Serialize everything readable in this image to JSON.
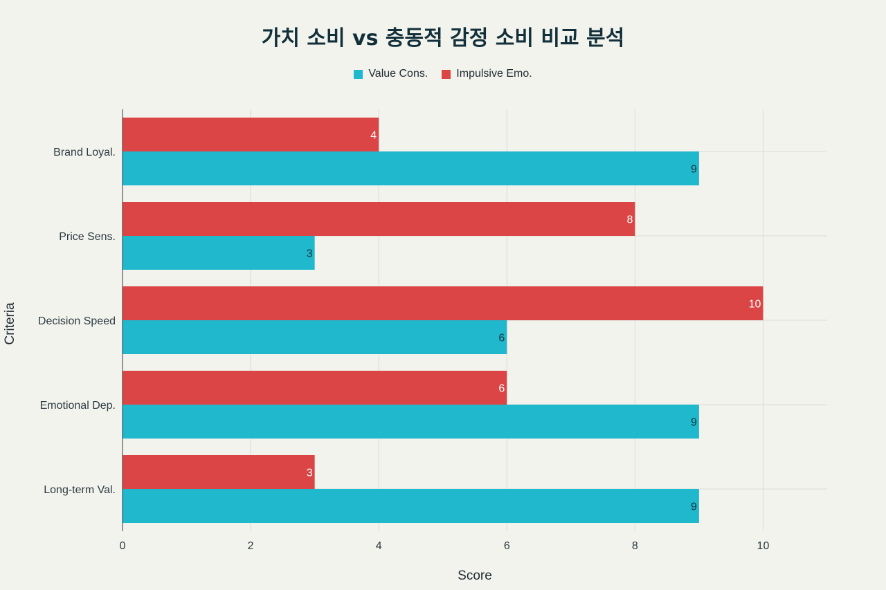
{
  "chart_data": {
    "type": "bar",
    "orientation": "horizontal",
    "title": "가치 소비 vs 충동적 감정 소비 비교 분석",
    "xlabel": "Score",
    "ylabel": "Criteria",
    "xlim": [
      0,
      11
    ],
    "xticks": [
      0,
      2,
      4,
      6,
      8,
      10
    ],
    "grid": true,
    "legend_position": "top-center",
    "categories": [
      "Brand Loyal.",
      "Price Sens.",
      "Decision Speed",
      "Emotional Dep.",
      "Long-term Val."
    ],
    "series": [
      {
        "name": "Value Cons.",
        "color": "#1fb8cd",
        "label_color": "#13343b",
        "values": [
          9,
          3,
          6,
          9,
          9
        ]
      },
      {
        "name": "Impulsive Emo.",
        "color": "#db4545",
        "label_color": "#ffffff",
        "values": [
          4,
          8,
          10,
          6,
          3
        ]
      }
    ]
  }
}
